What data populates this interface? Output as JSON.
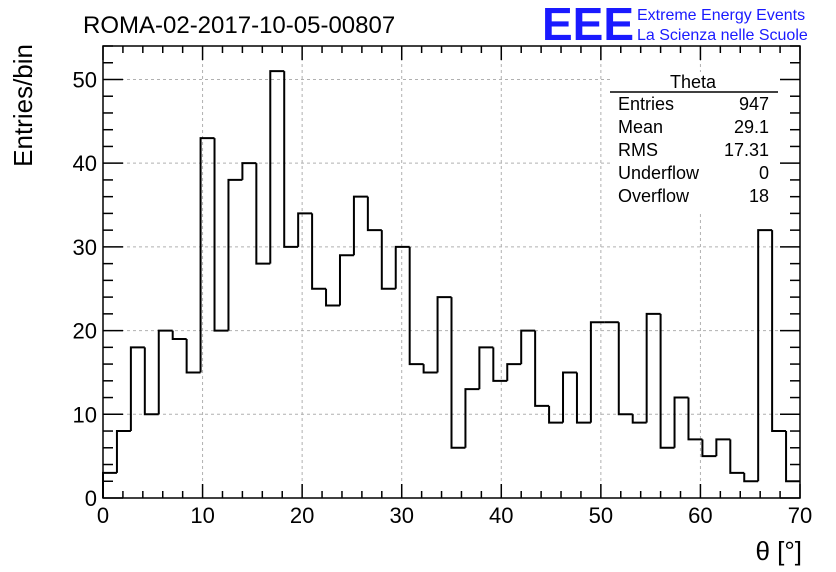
{
  "chart_data": {
    "type": "bar",
    "histogram": true,
    "title": "ROMA-02-2017-10-05-00807",
    "xlabel": "θ [°]",
    "ylabel": "Entries/bin",
    "xlim": [
      0,
      70
    ],
    "ylim": [
      0,
      54
    ],
    "x_ticks": [
      0,
      10,
      20,
      30,
      40,
      50,
      60,
      70
    ],
    "y_ticks": [
      0,
      10,
      20,
      30,
      40,
      50
    ],
    "bin_width": 1.4,
    "values": [
      3,
      8,
      18,
      10,
      20,
      19,
      15,
      43,
      20,
      38,
      40,
      28,
      51,
      30,
      34,
      25,
      23,
      29,
      36,
      32,
      25,
      30,
      16,
      15,
      24,
      6,
      13,
      18,
      14,
      16,
      20,
      11,
      9,
      15,
      9,
      21,
      21,
      10,
      9,
      22,
      6,
      12,
      7,
      5,
      7,
      3,
      2,
      32,
      8,
      2
    ],
    "grid": true,
    "stats_box": {
      "name": "Theta",
      "rows": [
        {
          "label": "Entries",
          "value": "947"
        },
        {
          "label": "Mean",
          "value": "29.1"
        },
        {
          "label": "RMS",
          "value": "17.31"
        },
        {
          "label": "Underflow",
          "value": "0"
        },
        {
          "label": "Overflow",
          "value": "18"
        }
      ]
    }
  },
  "logo": {
    "letters": "EEE",
    "line1": "Extreme Energy Events",
    "line2": "La Scienza nelle Scuole",
    "color": "#1a1aff"
  },
  "colors": {
    "line": "#000000",
    "grid": "#b0b0b0"
  }
}
